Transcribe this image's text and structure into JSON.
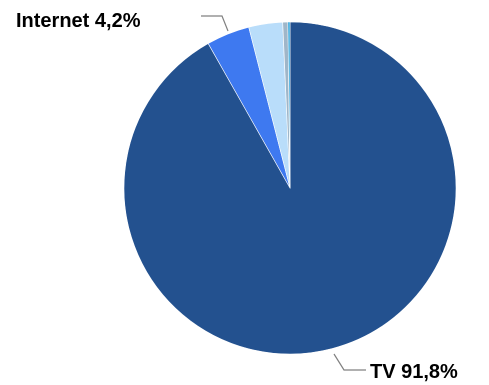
{
  "chart_data": {
    "type": "pie",
    "categories": [
      "TV",
      "Internet",
      "",
      "",
      ""
    ],
    "values": [
      91.8,
      4.2,
      3.3,
      0.5,
      0.2
    ],
    "colors": [
      "#23518F",
      "#3E79F0",
      "#B9DDFA",
      "#9FB6C9",
      "#1C9CD8"
    ],
    "start_angle_deg": 0,
    "direction": "clockwise",
    "labels": [
      {
        "slice": 0,
        "text": "TV 91,8%",
        "position": "bottom-right"
      },
      {
        "slice": 1,
        "text": "Internet 4,2%",
        "position": "top-left"
      }
    ],
    "title": "",
    "legend": "none"
  }
}
